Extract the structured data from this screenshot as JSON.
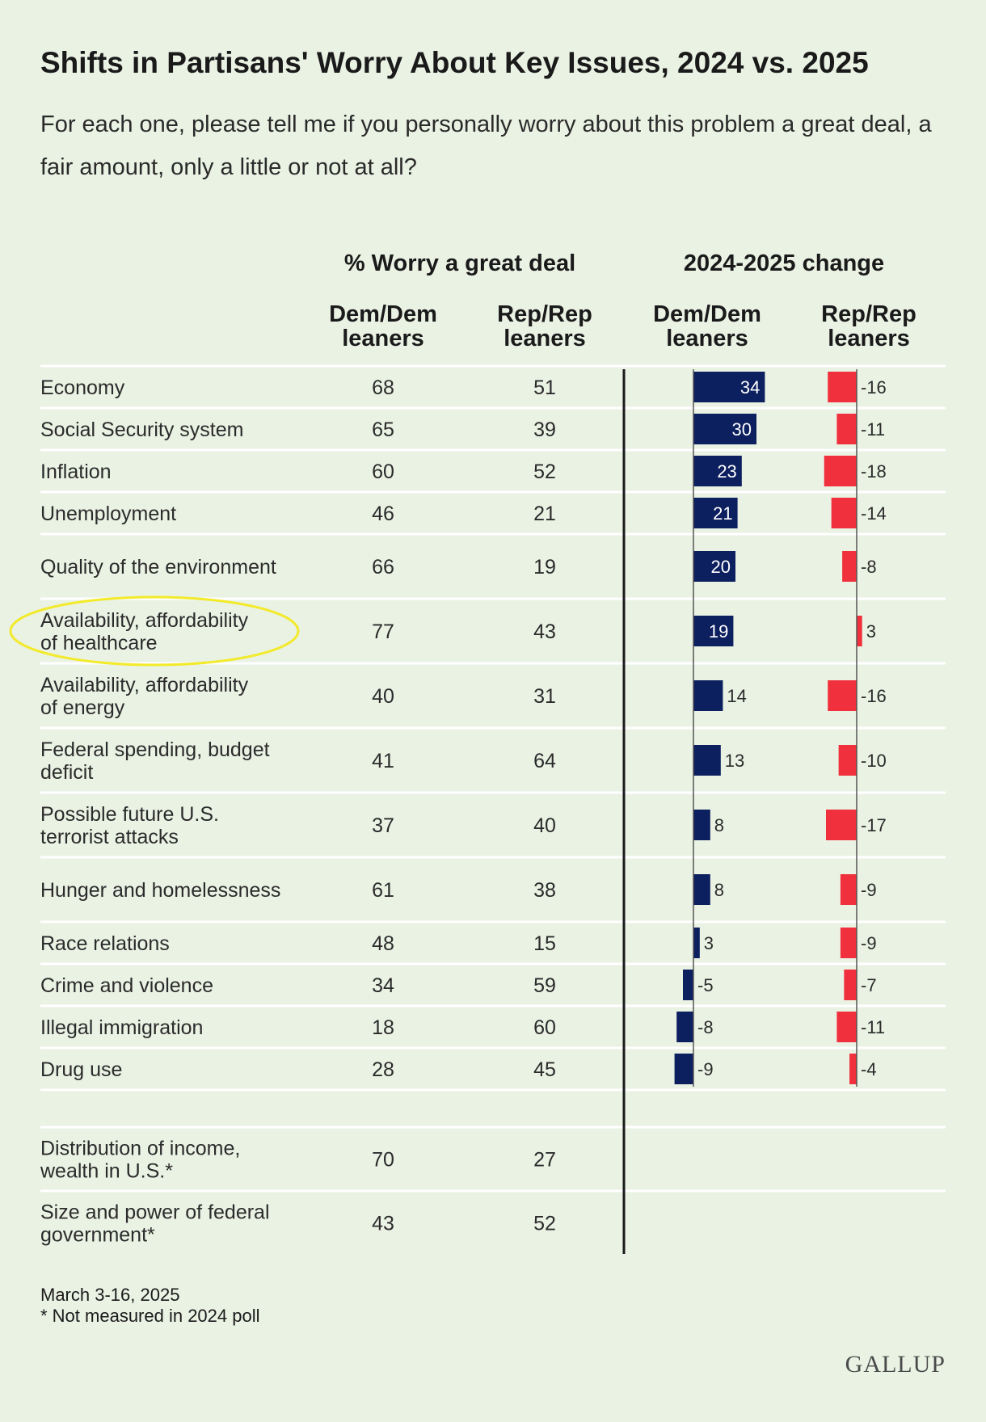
{
  "chart_data": {
    "type": "table",
    "title": "Shifts in Partisans' Worry About Key Issues, 2024 vs. 2025",
    "subtitle": "For each one, please tell me if you personally worry about this problem a great deal, a fair amount, only a little or not at all?",
    "group_headers": [
      "% Worry a great deal",
      "2024-2025 change"
    ],
    "column_headers": [
      "Dem/Dem leaners",
      "Rep/Rep leaners",
      "Dem/Dem leaners",
      "Rep/Rep leaners"
    ],
    "rows": [
      {
        "issue": "Economy",
        "dem": 68,
        "rep": 51,
        "dem_change": 34,
        "rep_change": -16
      },
      {
        "issue": "Social Security system",
        "dem": 65,
        "rep": 39,
        "dem_change": 30,
        "rep_change": -11
      },
      {
        "issue": "Inflation",
        "dem": 60,
        "rep": 52,
        "dem_change": 23,
        "rep_change": -18
      },
      {
        "issue": "Unemployment",
        "dem": 46,
        "rep": 21,
        "dem_change": 21,
        "rep_change": -14
      },
      {
        "issue": "Quality of the environment",
        "dem": 66,
        "rep": 19,
        "dem_change": 20,
        "rep_change": -8
      },
      {
        "issue": "Availability, affordability of healthcare",
        "dem": 77,
        "rep": 43,
        "dem_change": 19,
        "rep_change": 3,
        "highlighted": true
      },
      {
        "issue": "Availability, affordability of energy",
        "dem": 40,
        "rep": 31,
        "dem_change": 14,
        "rep_change": -16
      },
      {
        "issue": "Federal spending, budget deficit",
        "dem": 41,
        "rep": 64,
        "dem_change": 13,
        "rep_change": -10
      },
      {
        "issue": "Possible future U.S. terrorist attacks",
        "dem": 37,
        "rep": 40,
        "dem_change": 8,
        "rep_change": -17
      },
      {
        "issue": "Hunger and homelessness",
        "dem": 61,
        "rep": 38,
        "dem_change": 8,
        "rep_change": -9
      },
      {
        "issue": "Race relations",
        "dem": 48,
        "rep": 15,
        "dem_change": 3,
        "rep_change": -9
      },
      {
        "issue": "Crime and violence",
        "dem": 34,
        "rep": 59,
        "dem_change": -5,
        "rep_change": -7
      },
      {
        "issue": "Illegal immigration",
        "dem": 18,
        "rep": 60,
        "dem_change": -8,
        "rep_change": -11
      },
      {
        "issue": "Drug use",
        "dem": 28,
        "rep": 45,
        "dem_change": -9,
        "rep_change": -4
      }
    ],
    "extra_rows": [
      {
        "issue": "Distribution of income, wealth in U.S.*",
        "dem": 70,
        "rep": 27
      },
      {
        "issue": "Size and power of federal government*",
        "dem": 43,
        "rep": 52
      }
    ],
    "colors": {
      "dem": "#0c1f5e",
      "rep": "#f0303c",
      "highlight": "#f2ea2a",
      "background": "#eaf2e4"
    }
  },
  "footnote": {
    "date": "March 3-16, 2025",
    "note": "* Not measured in 2024 poll"
  },
  "brand": "GALLUP"
}
